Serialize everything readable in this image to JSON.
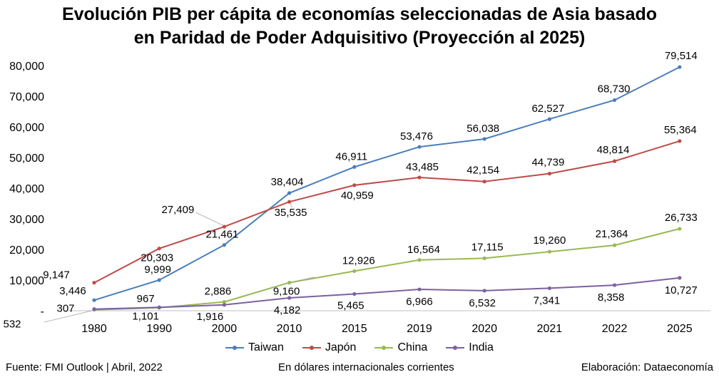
{
  "title_line1": "Evolución PIB per cápita de economías seleccionadas de Asia basado",
  "title_line2": "en Paridad de Poder Adquisitivo (Proyección al 2025)",
  "footer": {
    "source": "Fuente: FMI Outlook | Abril, 2022",
    "units": "En dólares internacionales corrientes",
    "credit": "Elaboración: Dataeconomía"
  },
  "chart_data": {
    "type": "line",
    "categories": [
      "1980",
      "1990",
      "2000",
      "2010",
      "2015",
      "2019",
      "2020",
      "2021",
      "2022",
      "2025"
    ],
    "y_tick_labels": [
      "-",
      "10,000",
      "20,000",
      "30,000",
      "40,000",
      "50,000",
      "60,000",
      "70,000",
      "80,000"
    ],
    "ylim": [
      0,
      80000
    ],
    "grid": false,
    "legend_position": "bottom",
    "series": [
      {
        "name": "Taiwan",
        "color": "#4a7ebb",
        "values": [
          3446,
          9999,
          21461,
          38404,
          46911,
          53476,
          56038,
          62527,
          68730,
          79514
        ],
        "labels": [
          "3,446",
          "9,999",
          "21,461",
          "38,404",
          "46,911",
          "53,476",
          "56,038",
          "62,527",
          "68,730",
          "79,514"
        ]
      },
      {
        "name": "Japón",
        "color": "#be4b48",
        "values": [
          9147,
          20303,
          27409,
          35535,
          40959,
          43485,
          42154,
          44739,
          48814,
          55364
        ],
        "labels": [
          "9,147",
          "20,303",
          "27,409",
          "35,535",
          "40,959",
          "43,485",
          "42,154",
          "44,739",
          "48,814",
          "55,364"
        ]
      },
      {
        "name": "China",
        "color": "#98b954",
        "values": [
          307,
          967,
          2886,
          9160,
          12926,
          16564,
          17115,
          19260,
          21364,
          26733
        ],
        "labels": [
          "307",
          "967",
          "2,886",
          "9,160",
          "12,926",
          "16,564",
          "17,115",
          "19,260",
          "21,364",
          "26,733"
        ]
      },
      {
        "name": "India",
        "color": "#7d60a0",
        "values": [
          532,
          1101,
          1916,
          4182,
          5465,
          6966,
          6532,
          7341,
          8358,
          10727
        ],
        "labels": [
          "532",
          "1,101",
          "1,916",
          "4,182",
          "5,465",
          "6,966",
          "6,532",
          "7,341",
          "8,358",
          "10,727"
        ]
      }
    ]
  }
}
